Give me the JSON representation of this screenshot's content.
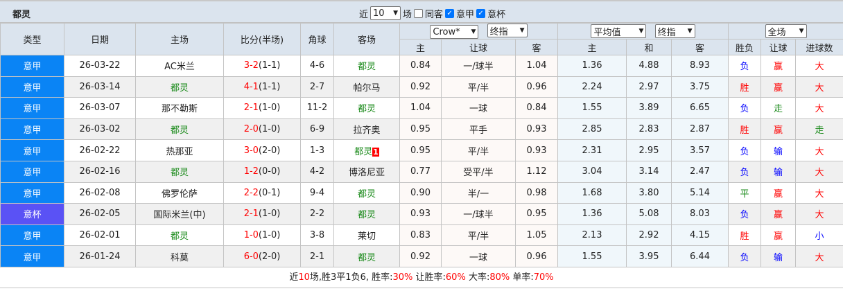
{
  "header": {
    "team": "都灵",
    "recent_prefix": "近",
    "recent_count": "10",
    "recent_suffix": "场",
    "same_away": "同客",
    "same_away_checked": false,
    "league1": "意甲",
    "league1_checked": true,
    "league2": "意杯",
    "league2_checked": true
  },
  "columns": {
    "type": "类型",
    "date": "日期",
    "home": "主场",
    "score": "比分(半场)",
    "corner": "角球",
    "away": "客场",
    "company": "Crow*",
    "hc_kind": "终指",
    "avg": "平均值",
    "avg_kind": "终指",
    "scope": "全场",
    "hc_home": "主",
    "hc_line": "让球",
    "hc_away": "客",
    "eu_home": "主",
    "eu_draw": "和",
    "eu_away": "客",
    "result": "胜负",
    "hc_result": "让球",
    "goals": "进球数"
  },
  "rows": [
    {
      "type": "意甲",
      "date": "26-03-22",
      "home": "AC米兰",
      "home_team": false,
      "ft": "3-2",
      "ht": "(1-1)",
      "corner": "4-6",
      "away": "都灵",
      "away_team": true,
      "badge": "",
      "h1": "0.84",
      "line": "一/球半",
      "h2": "1.04",
      "e1": "1.36",
      "e2": "4.88",
      "e3": "8.93",
      "res": "负",
      "hres": "赢",
      "goals": "大"
    },
    {
      "type": "意甲",
      "date": "26-03-14",
      "home": "都灵",
      "home_team": true,
      "ft": "4-1",
      "ht": "(1-1)",
      "corner": "2-7",
      "away": "帕尔马",
      "away_team": false,
      "badge": "",
      "h1": "0.92",
      "line": "平/半",
      "h2": "0.96",
      "e1": "2.24",
      "e2": "2.97",
      "e3": "3.75",
      "res": "胜",
      "hres": "赢",
      "goals": "大"
    },
    {
      "type": "意甲",
      "date": "26-03-07",
      "home": "那不勒斯",
      "home_team": false,
      "ft": "2-1",
      "ht": "(1-0)",
      "corner": "11-2",
      "away": "都灵",
      "away_team": true,
      "badge": "",
      "h1": "1.04",
      "line": "一球",
      "h2": "0.84",
      "e1": "1.55",
      "e2": "3.89",
      "e3": "6.65",
      "res": "负",
      "hres": "走",
      "goals": "大"
    },
    {
      "type": "意甲",
      "date": "26-03-02",
      "home": "都灵",
      "home_team": true,
      "ft": "2-0",
      "ht": "(1-0)",
      "corner": "6-9",
      "away": "拉齐奥",
      "away_team": false,
      "badge": "",
      "h1": "0.95",
      "line": "平手",
      "h2": "0.93",
      "e1": "2.85",
      "e2": "2.83",
      "e3": "2.87",
      "res": "胜",
      "hres": "赢",
      "goals": "走"
    },
    {
      "type": "意甲",
      "date": "26-02-22",
      "home": "热那亚",
      "home_team": false,
      "ft": "3-0",
      "ht": "(2-0)",
      "corner": "1-3",
      "away": "都灵",
      "away_team": true,
      "badge": "1",
      "h1": "0.95",
      "line": "平/半",
      "h2": "0.93",
      "e1": "2.31",
      "e2": "2.95",
      "e3": "3.57",
      "res": "负",
      "hres": "输",
      "goals": "大"
    },
    {
      "type": "意甲",
      "date": "26-02-16",
      "home": "都灵",
      "home_team": true,
      "ft": "1-2",
      "ht": "(0-0)",
      "corner": "4-2",
      "away": "博洛尼亚",
      "away_team": false,
      "badge": "",
      "h1": "0.77",
      "line": "受平/半",
      "h2": "1.12",
      "e1": "3.04",
      "e2": "3.14",
      "e3": "2.47",
      "res": "负",
      "hres": "输",
      "goals": "大"
    },
    {
      "type": "意甲",
      "date": "26-02-08",
      "home": "佛罗伦萨",
      "home_team": false,
      "ft": "2-2",
      "ht": "(0-1)",
      "corner": "9-4",
      "away": "都灵",
      "away_team": true,
      "badge": "",
      "h1": "0.90",
      "line": "半/一",
      "h2": "0.98",
      "e1": "1.68",
      "e2": "3.80",
      "e3": "5.14",
      "res": "平",
      "hres": "赢",
      "goals": "大"
    },
    {
      "type": "意杯",
      "date": "26-02-05",
      "home": "国际米兰(中)",
      "home_team": false,
      "ft": "2-1",
      "ht": "(1-0)",
      "corner": "2-2",
      "away": "都灵",
      "away_team": true,
      "badge": "",
      "h1": "0.93",
      "line": "一/球半",
      "h2": "0.95",
      "e1": "1.36",
      "e2": "5.08",
      "e3": "8.03",
      "res": "负",
      "hres": "赢",
      "goals": "大"
    },
    {
      "type": "意甲",
      "date": "26-02-01",
      "home": "都灵",
      "home_team": true,
      "ft": "1-0",
      "ht": "(1-0)",
      "corner": "3-8",
      "away": "莱切",
      "away_team": false,
      "badge": "",
      "h1": "0.83",
      "line": "平/半",
      "h2": "1.05",
      "e1": "2.13",
      "e2": "2.92",
      "e3": "4.15",
      "res": "胜",
      "hres": "赢",
      "goals": "小"
    },
    {
      "type": "意甲",
      "date": "26-01-24",
      "home": "科莫",
      "home_team": false,
      "ft": "6-0",
      "ht": "(2-0)",
      "corner": "2-1",
      "away": "都灵",
      "away_team": true,
      "badge": "",
      "h1": "0.92",
      "line": "一球",
      "h2": "0.96",
      "e1": "1.55",
      "e2": "3.95",
      "e3": "6.44",
      "res": "负",
      "hres": "输",
      "goals": "大"
    }
  ],
  "result_colors": {
    "胜": "#ff0000",
    "赢": "#ff0000",
    "大": "#ff0000",
    "负": "#0000ff",
    "输": "#0000ff",
    "小": "#0000ff",
    "平": "#1a8a1a",
    "走": "#1a8a1a"
  },
  "summary": {
    "p1": "近",
    "n": "10",
    "p2": "场,胜3平1负6, 胜率:",
    "win": "30%",
    "p3": " 让胜率:",
    "hwin": "60%",
    "p4": " 大率:",
    "big": "80%",
    "p5": " 单率:",
    "odd": "70%"
  }
}
